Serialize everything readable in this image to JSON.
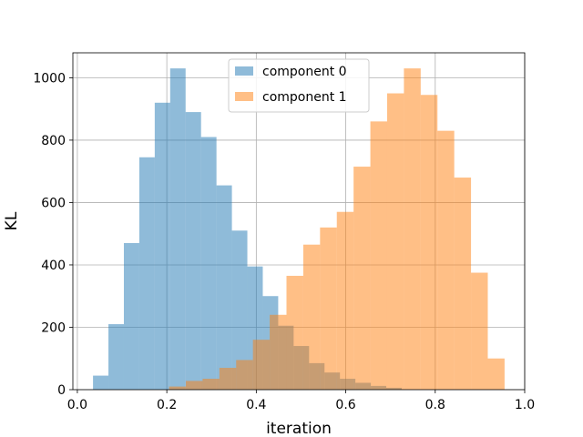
{
  "chart_data": {
    "type": "bar",
    "title": "",
    "xlabel": "iteration",
    "ylabel": "KL",
    "xlim": [
      -0.01,
      1.0
    ],
    "ylim": [
      0,
      1080
    ],
    "xticks": [
      "0.0",
      "0.2",
      "0.4",
      "0.6",
      "0.8",
      "1.0"
    ],
    "xtick_values": [
      0.0,
      0.2,
      0.4,
      0.6,
      0.8,
      1.0
    ],
    "yticks": [
      "0",
      "200",
      "400",
      "600",
      "800",
      "1000"
    ],
    "ytick_values": [
      0,
      200,
      400,
      600,
      800,
      1000
    ],
    "grid": true,
    "legend_position": "upper center",
    "series": [
      {
        "name": "component 0",
        "color": "#1f77b4",
        "opacity": 0.5,
        "bin_edges": [
          0.035,
          0.0695,
          0.104,
          0.1385,
          0.173,
          0.2075,
          0.242,
          0.2765,
          0.311,
          0.3455,
          0.38,
          0.4145,
          0.449,
          0.4835,
          0.518,
          0.5525,
          0.587,
          0.6215,
          0.656,
          0.6905,
          0.725
        ],
        "counts": [
          45,
          210,
          470,
          745,
          920,
          1030,
          890,
          810,
          655,
          510,
          395,
          300,
          205,
          140,
          85,
          55,
          35,
          22,
          12,
          6
        ]
      },
      {
        "name": "component 1",
        "color": "#ff7f0e",
        "opacity": 0.5,
        "bin_edges": [
          0.205,
          0.2425,
          0.28,
          0.3175,
          0.355,
          0.3925,
          0.43,
          0.4675,
          0.505,
          0.5425,
          0.58,
          0.6175,
          0.655,
          0.6925,
          0.73,
          0.7675,
          0.805,
          0.8425,
          0.88,
          0.9175,
          0.955
        ],
        "counts": [
          10,
          28,
          35,
          70,
          95,
          160,
          240,
          365,
          465,
          520,
          570,
          715,
          860,
          950,
          1030,
          945,
          830,
          680,
          375,
          100
        ]
      }
    ]
  }
}
